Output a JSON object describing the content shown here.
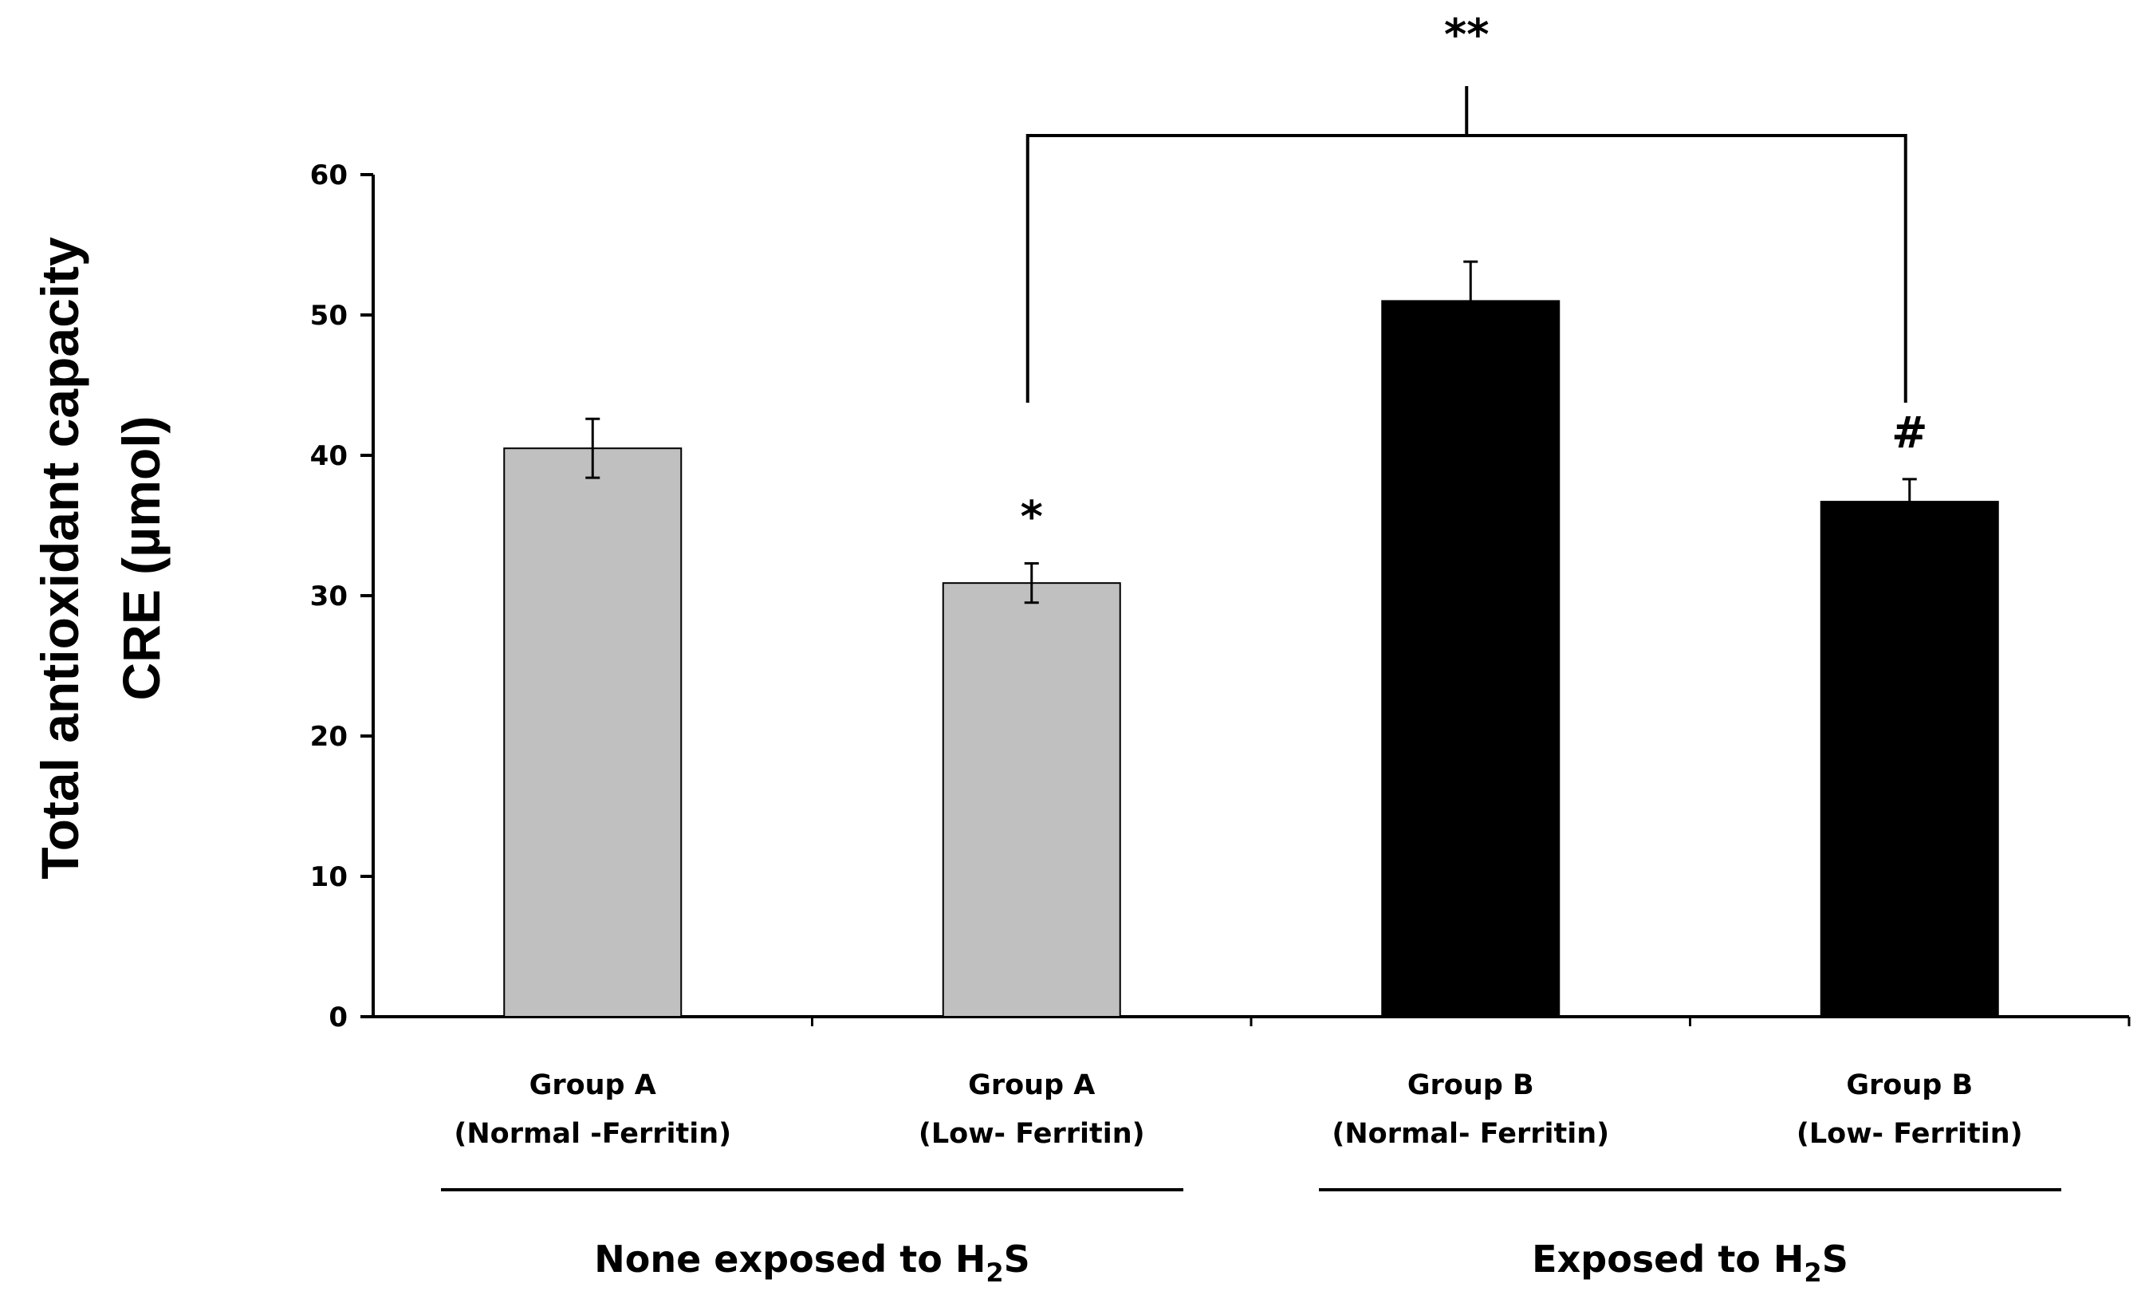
{
  "chart_data": {
    "type": "bar",
    "title": "",
    "ylabel_lines": [
      "Total antioxidant capacity",
      "CRE (µmol)"
    ],
    "xlabel": "",
    "ylim": [
      0,
      60
    ],
    "yticks": [
      0,
      10,
      20,
      30,
      40,
      50,
      60
    ],
    "categories": [
      [
        "Group A",
        "(Normal -Ferritin)"
      ],
      [
        "Group A",
        "(Low- Ferritin)"
      ],
      [
        "Group B",
        "(Normal- Ferritin)"
      ],
      [
        "Group B",
        "(Low- Ferritin)"
      ]
    ],
    "values": [
      40.5,
      30.9,
      51.0,
      36.7
    ],
    "errors": [
      2.1,
      1.4,
      2.8,
      1.6
    ],
    "bar_colors": [
      "#c0c0c0",
      "#c0c0c0",
      "#000000",
      "#000000"
    ],
    "bar_annotations": [
      "",
      "*",
      "",
      "#"
    ],
    "groups": [
      {
        "label_main": "None exposed to H",
        "label_sub": "2",
        "label_tail": "S",
        "categories": [
          0,
          1
        ]
      },
      {
        "label_main": "Exposed to H",
        "label_sub": "2",
        "label_tail": "S",
        "categories": [
          2,
          3
        ]
      }
    ],
    "comparison": {
      "from": 1,
      "to": 3,
      "label": "**"
    },
    "grid": false,
    "legend": "none"
  }
}
